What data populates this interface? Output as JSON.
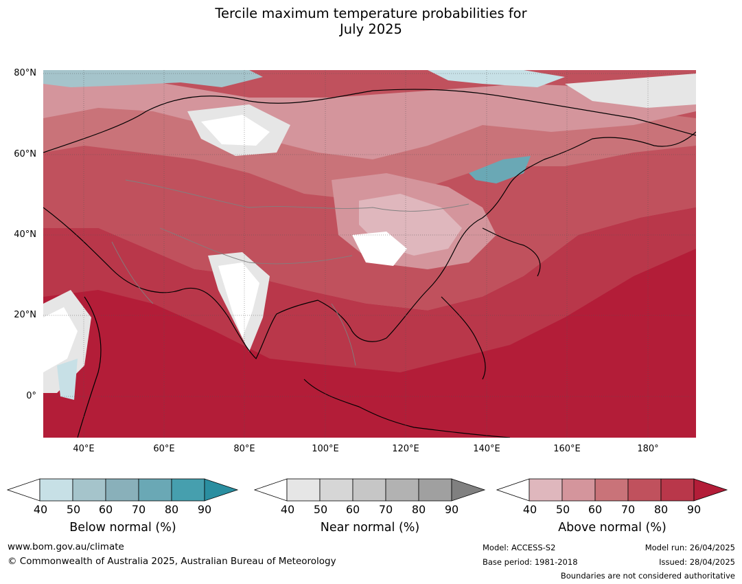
{
  "title_line1": "Tercile maximum temperature probabilities for",
  "title_line2": "July 2025",
  "lat_labels": [
    "80°N",
    "60°N",
    "40°N",
    "20°N",
    "0°"
  ],
  "lon_labels": [
    "40°E",
    "60°E",
    "80°E",
    "100°E",
    "120°E",
    "140°E",
    "160°E",
    "180°"
  ],
  "colors": {
    "above": [
      "#dfb7bd",
      "#d4959c",
      "#c97379",
      "#c0515d",
      "#b9374a",
      "#b31d38"
    ],
    "near": [
      "#e6e6e6",
      "#d6d6d6",
      "#c6c6c6",
      "#b2b2b2",
      "#a0a0a0",
      "#808080"
    ],
    "below": [
      "#c7e0e6",
      "#a5c4cb",
      "#89b0ba",
      "#6aa8b5",
      "#469fae",
      "#2a8ea0"
    ],
    "coast": "#000000",
    "border": "#808080"
  },
  "legends": [
    {
      "name": "Below normal (%)",
      "ticks": [
        "40",
        "50",
        "60",
        "70",
        "80",
        "90"
      ]
    },
    {
      "name": "Near normal (%)",
      "ticks": [
        "40",
        "50",
        "60",
        "70",
        "80",
        "90"
      ]
    },
    {
      "name": "Above normal (%)",
      "ticks": [
        "40",
        "50",
        "60",
        "70",
        "80",
        "90"
      ]
    }
  ],
  "footer": {
    "url": "www.bom.gov.au/climate",
    "copyright": "© Commonwealth of Australia 2025, Australian Bureau of Meteorology",
    "model": "Model: ACCESS-S2",
    "base_period": "Base period: 1981-2018",
    "model_run": "Model run: 26/04/2025",
    "issued": "Issued: 28/04/2025",
    "boundaries": "Boundaries are not considered authoritative"
  }
}
